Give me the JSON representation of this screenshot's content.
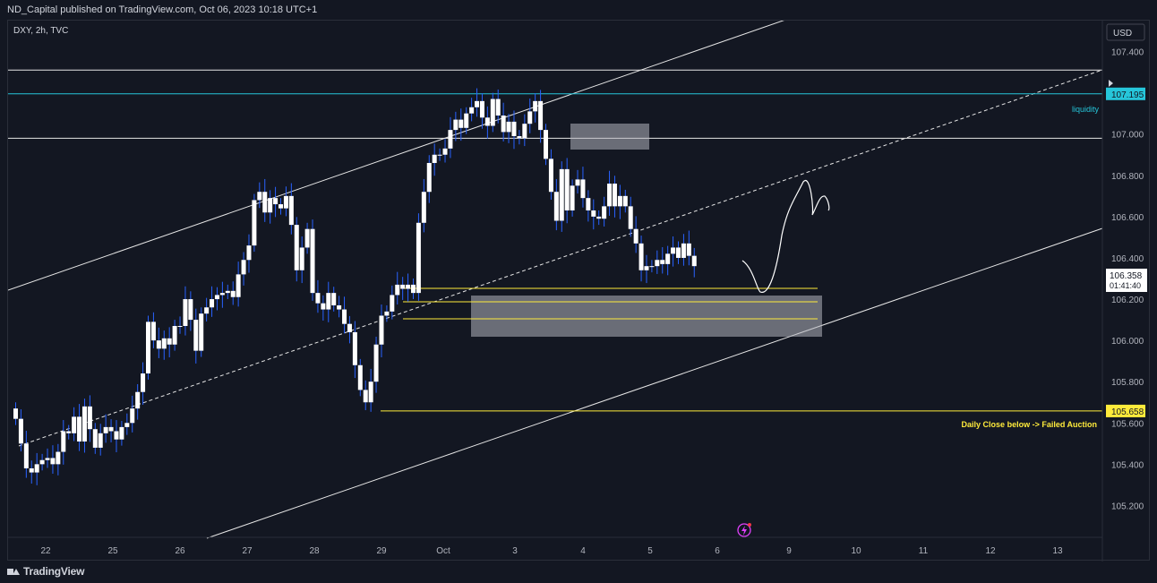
{
  "header": {
    "publish_text": "ND_Capital published on TradingView.com, Oct 06, 2023 10:18 UTC+1"
  },
  "footer": {
    "brand": "TradingView"
  },
  "colors": {
    "background": "#131722",
    "up_body": "#ffffff",
    "down_body": "#ffffff",
    "wick": "#2962ff",
    "cyan": "#26c6da",
    "yellow": "#ffeb3b",
    "line": "#e6e6e6",
    "zone": "#b2b5be"
  },
  "chart_data": {
    "type": "candlestick",
    "symbol_label": "DXY, 2h, TVC",
    "currency_label": "USD",
    "ylim": [
      105.05,
      107.55
    ],
    "y_ticks": [
      "107.400",
      "107.200",
      "107.000",
      "106.800",
      "106.600",
      "106.400",
      "106.200",
      "106.000",
      "105.800",
      "105.600",
      "105.400",
      "105.200"
    ],
    "y_tick_values": [
      107.4,
      107.2,
      107.0,
      106.8,
      106.6,
      106.4,
      106.2,
      106.0,
      105.8,
      105.6,
      105.4,
      105.2
    ],
    "x_ticks": [
      {
        "label": "22",
        "day": 0
      },
      {
        "label": "25",
        "day": 1
      },
      {
        "label": "26",
        "day": 2
      },
      {
        "label": "27",
        "day": 3
      },
      {
        "label": "28",
        "day": 4
      },
      {
        "label": "29",
        "day": 5
      },
      {
        "label": "Oct",
        "day": 6
      },
      {
        "label": "3",
        "day": 7
      },
      {
        "label": "4",
        "day": 8
      },
      {
        "label": "5",
        "day": 9
      },
      {
        "label": "6",
        "day": 10
      },
      {
        "label": "9",
        "day": 11
      },
      {
        "label": "10",
        "day": 12
      },
      {
        "label": "11",
        "day": 13
      },
      {
        "label": "12",
        "day": 14
      },
      {
        "label": "13",
        "day": 15
      }
    ],
    "candle_closes": [
      105.62,
      105.5,
      105.38,
      105.36,
      105.4,
      105.42,
      105.43,
      105.4,
      105.46,
      105.56,
      105.55,
      105.63,
      105.51,
      105.68,
      105.57,
      105.48,
      105.55,
      105.58,
      105.56,
      105.52,
      105.58,
      105.6,
      105.67,
      105.75,
      105.84,
      106.09,
      106.0,
      105.96,
      106.01,
      105.98,
      106.07,
      106.07,
      106.2,
      106.1,
      105.95,
      106.13,
      106.16,
      106.2,
      106.22,
      106.23,
      106.24,
      106.21,
      106.32,
      106.39,
      106.46,
      106.68,
      106.72,
      106.62,
      106.69,
      106.66,
      106.64,
      106.7,
      106.56,
      106.34,
      106.45,
      106.54,
      106.23,
      106.18,
      106.15,
      106.23,
      106.17,
      106.15,
      106.08,
      106.04,
      105.88,
      105.76,
      105.7,
      105.8,
      105.98,
      106.12,
      106.14,
      106.22,
      106.27,
      106.25,
      106.27,
      106.23,
      106.57,
      106.72,
      106.86,
      106.9,
      106.9,
      106.93,
      107.02,
      107.07,
      107.03,
      107.1,
      107.13,
      107.16,
      107.08,
      107.04,
      107.17,
      107.09,
      107.01,
      107.06,
      106.99,
      106.98,
      107.05,
      107.11,
      107.16,
      107.02,
      106.88,
      106.72,
      106.58,
      106.83,
      106.63,
      106.75,
      106.78,
      106.69,
      106.63,
      106.6,
      106.59,
      106.65,
      106.76,
      106.65,
      106.7,
      106.65,
      106.54,
      106.47,
      106.34,
      106.36,
      106.36,
      106.39,
      106.37,
      106.42,
      106.45,
      106.4,
      106.47,
      106.41,
      106.36
    ],
    "levels": [
      {
        "name": "upper-white-level",
        "value": 107.31,
        "color": "#e6e6e6"
      },
      {
        "name": "liquidity-level",
        "value": 107.195,
        "color": "#26c6da",
        "label": "liquidity",
        "axis_label": "107.195"
      },
      {
        "name": "round-level",
        "value": 106.98,
        "color": "#e6e6e6"
      },
      {
        "name": "failed-auction-level",
        "value": 105.658,
        "color": "#ffeb3b",
        "label": "Daily Close below -> Failed Auction",
        "axis_label": "105.658"
      }
    ],
    "yellow_lines": [
      106.3,
      106.23,
      106.15
    ],
    "current_price": {
      "value": "106.358",
      "countdown": "01:41:40"
    },
    "projection_note": "hand-drawn forecast path"
  }
}
